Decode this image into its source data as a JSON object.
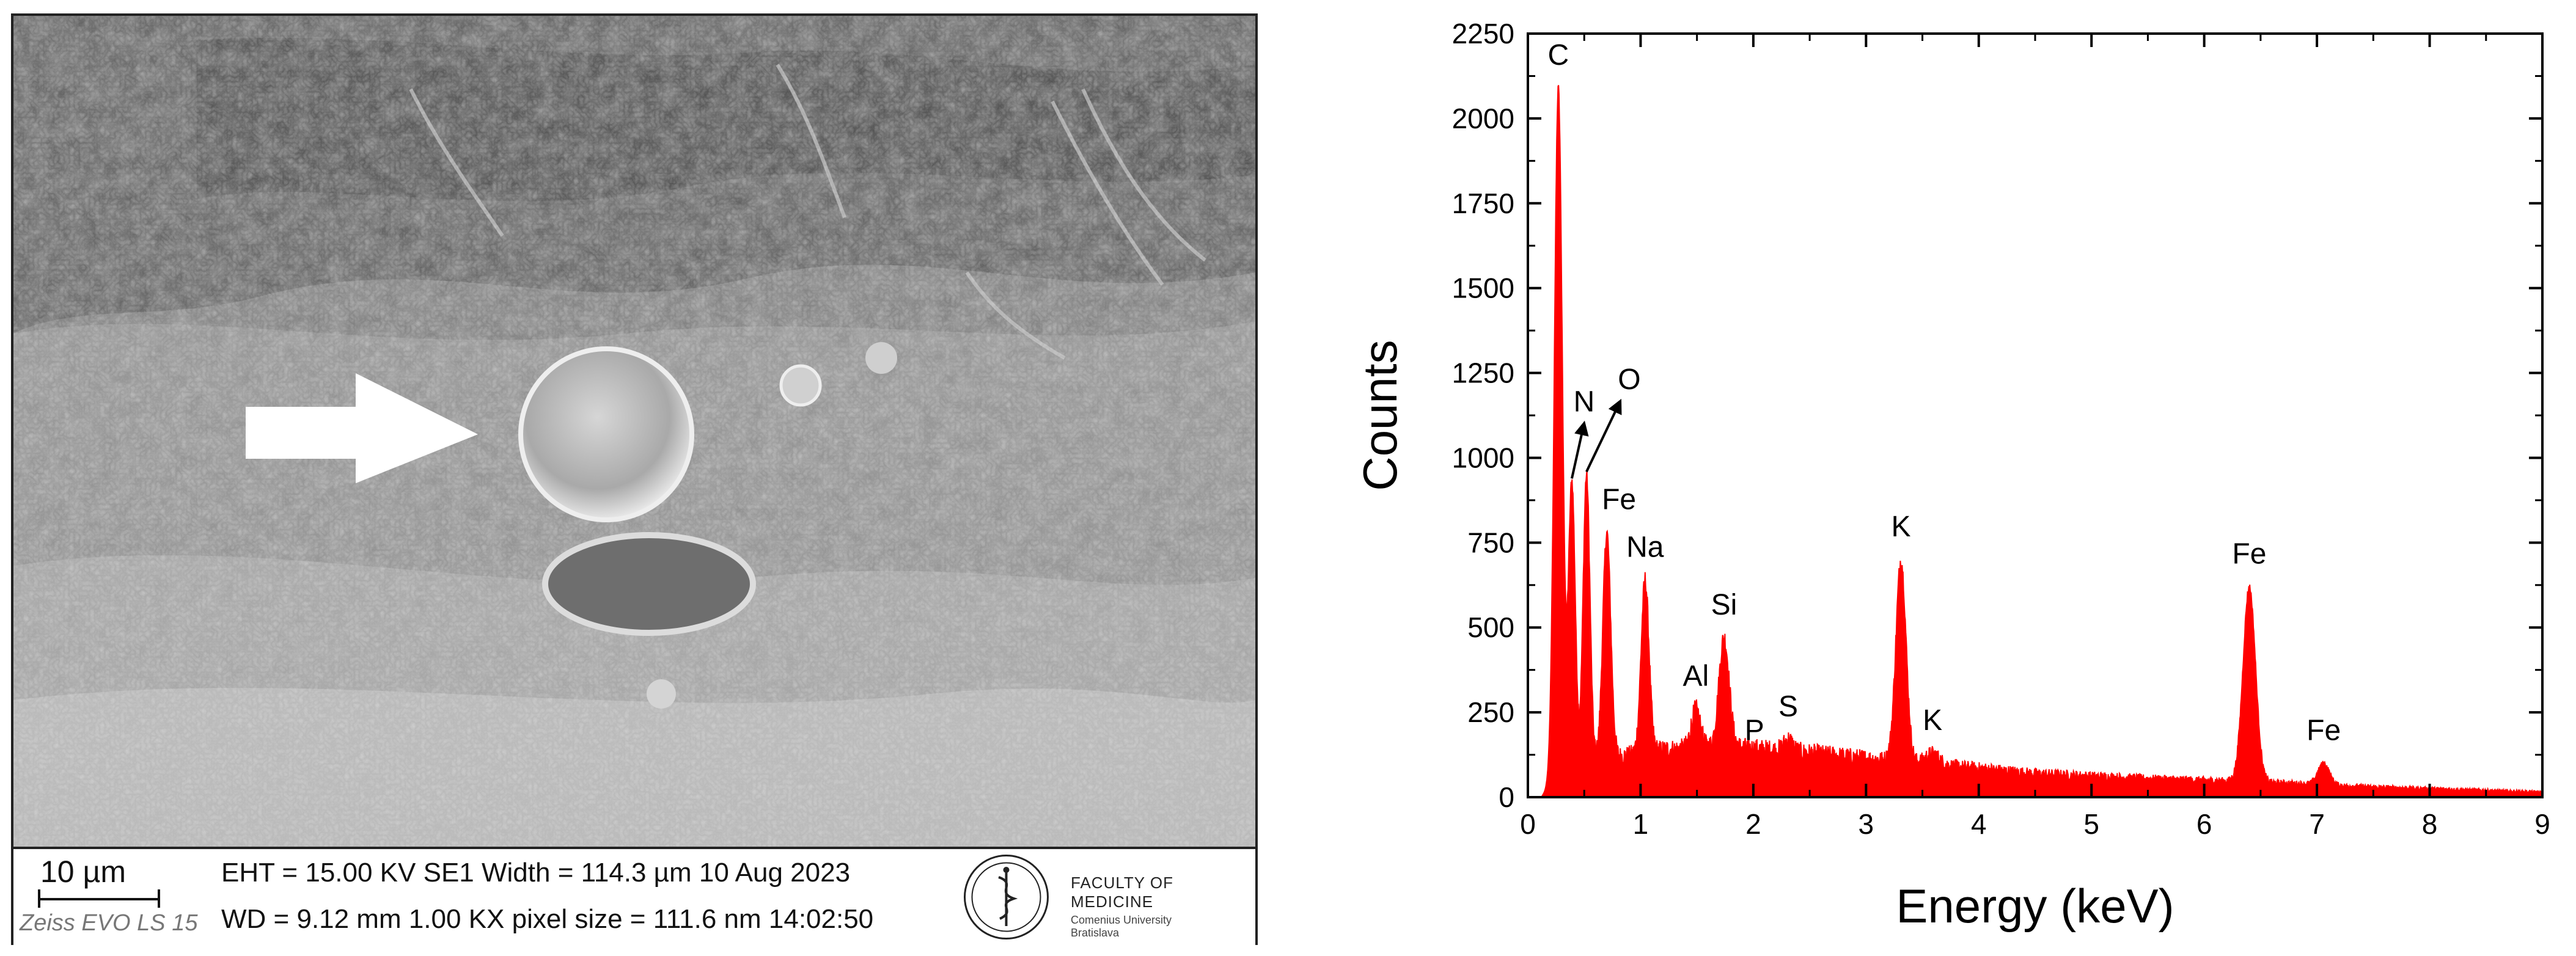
{
  "sem_panel": {
    "scale_label": "10 µm",
    "instrument_model": "Zeiss EVO LS 15",
    "info_line_1": "EHT = 15.00 KV    SE1   Width = 114.3 µm   10 Aug 2023",
    "info_line_2": "WD = 9.12 mm   1.00 KX   pixel size = 111.6 nm  14:02:50",
    "logo": {
      "title": "FACULTY OF MEDICINE",
      "subtitle_1": "Comenius University",
      "subtitle_2": "Bratislava"
    }
  },
  "chart_data": {
    "type": "line",
    "xlabel": "Energy (keV)",
    "ylabel": "Counts",
    "xlim": [
      0,
      9
    ],
    "ylim": [
      0,
      2250
    ],
    "x_ticks": [
      0,
      1,
      2,
      3,
      4,
      5,
      6,
      7,
      8,
      9
    ],
    "y_ticks": [
      0,
      250,
      500,
      750,
      1000,
      1250,
      1500,
      1750,
      2000,
      2250
    ],
    "grid": false,
    "series_color": "#ff0000",
    "peaks": [
      {
        "label": "C",
        "energy": 0.27,
        "counts": 2090,
        "width": 0.035
      },
      {
        "label": "N",
        "energy": 0.39,
        "counts": 930,
        "width": 0.03
      },
      {
        "label": "O",
        "energy": 0.52,
        "counts": 950,
        "width": 0.03
      },
      {
        "label": "Fe",
        "energy": 0.7,
        "counts": 780,
        "width": 0.035
      },
      {
        "label": "Na",
        "energy": 1.04,
        "counts": 640,
        "width": 0.035
      },
      {
        "label": "Al",
        "energy": 1.49,
        "counts": 260,
        "width": 0.04
      },
      {
        "label": "Si",
        "energy": 1.74,
        "counts": 470,
        "width": 0.045
      },
      {
        "label": "P",
        "energy": 2.01,
        "counts": 100,
        "width": 0.035
      },
      {
        "label": "S",
        "energy": 2.31,
        "counts": 170,
        "width": 0.04
      },
      {
        "label": "K",
        "energy": 3.31,
        "counts": 700,
        "width": 0.045
      },
      {
        "label": "K",
        "energy": 3.59,
        "counts": 130,
        "width": 0.06
      },
      {
        "label": "Fe",
        "energy": 6.4,
        "counts": 620,
        "width": 0.055
      },
      {
        "label": "Fe",
        "energy": 7.06,
        "counts": 100,
        "width": 0.05
      }
    ],
    "background": [
      {
        "energy": 0.12,
        "counts": 0
      },
      {
        "energy": 0.25,
        "counts": 60
      },
      {
        "energy": 0.6,
        "counts": 110
      },
      {
        "energy": 1.2,
        "counts": 140
      },
      {
        "energy": 1.8,
        "counts": 150
      },
      {
        "energy": 2.5,
        "counts": 130
      },
      {
        "energy": 3.5,
        "counts": 100
      },
      {
        "energy": 4.5,
        "counts": 70
      },
      {
        "energy": 5.5,
        "counts": 55
      },
      {
        "energy": 6.5,
        "counts": 45
      },
      {
        "energy": 7.5,
        "counts": 30
      },
      {
        "energy": 8.5,
        "counts": 20
      },
      {
        "energy": 9.0,
        "counts": 15
      }
    ]
  }
}
